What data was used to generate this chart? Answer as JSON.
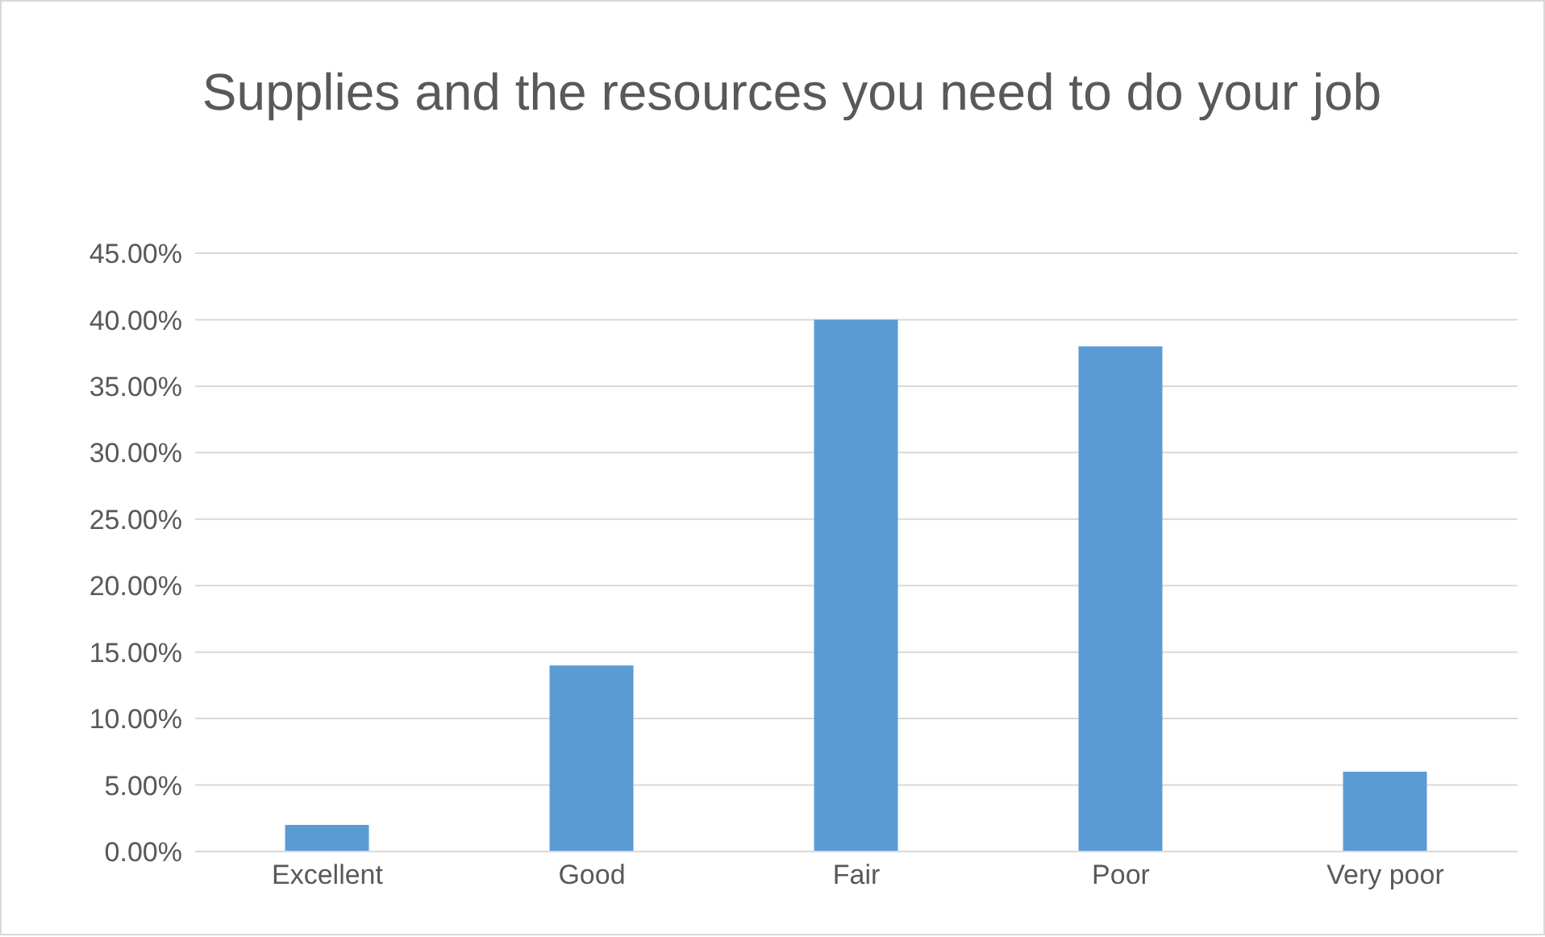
{
  "chart_data": {
    "type": "bar",
    "title": "Supplies and the resources you need to do your job",
    "categories": [
      "Excellent",
      "Good",
      "Fair",
      "Poor",
      "Very poor"
    ],
    "values": [
      2,
      14,
      40,
      38,
      6
    ],
    "color": "#5b9bd5",
    "ylim": [
      0,
      45
    ],
    "yticks": [
      {
        "value": 0,
        "label": "0.00%"
      },
      {
        "value": 5,
        "label": "5.00%"
      },
      {
        "value": 10,
        "label": "10.00%"
      },
      {
        "value": 15,
        "label": "15.00%"
      },
      {
        "value": 20,
        "label": "20.00%"
      },
      {
        "value": 25,
        "label": "25.00%"
      },
      {
        "value": 30,
        "label": "30.00%"
      },
      {
        "value": 35,
        "label": "35.00%"
      },
      {
        "value": 40,
        "label": "40.00%"
      },
      {
        "value": 45,
        "label": "45.00%"
      }
    ],
    "grid": "y"
  }
}
